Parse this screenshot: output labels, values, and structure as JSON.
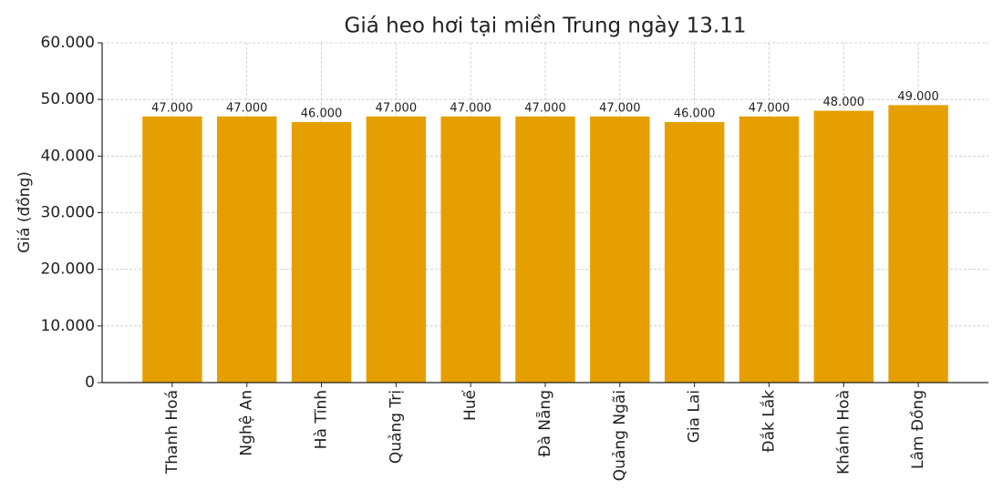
{
  "chart_data": {
    "type": "bar",
    "title": "Giá heo hơi tại miền Trung ngày 13.11",
    "y_label": "Giá (đồng)",
    "categories": [
      "Thanh Hoá",
      "Nghệ An",
      "Hà Tĩnh",
      "Quảng Trị",
      "Huế",
      "Đà Nẵng",
      "Quảng Ngãi",
      "Gia Lai",
      "Đắk Lắk",
      "Khánh Hoà",
      "Lâm Đồng"
    ],
    "values": [
      47000,
      47000,
      46000,
      47000,
      47000,
      47000,
      47000,
      46000,
      47000,
      48000,
      49000
    ],
    "value_labels": [
      "47.000",
      "47.000",
      "46.000",
      "47.000",
      "47.000",
      "47.000",
      "47.000",
      "46.000",
      "47.000",
      "48.000",
      "49.000"
    ],
    "color": "#e69f00",
    "ylim": [
      0,
      60000
    ],
    "yticks": [
      0,
      {
        "value": 10000,
        "label": "10.000"
      },
      {
        "value": 20000,
        "label": "20.000"
      },
      {
        "value": 30000,
        "label": "30.000"
      },
      {
        "value": 40000,
        "label": "40.000"
      },
      {
        "value": 50000,
        "label": "50.000"
      },
      {
        "value": 60000,
        "label": "60.000"
      }
    ],
    "grid": true
  }
}
